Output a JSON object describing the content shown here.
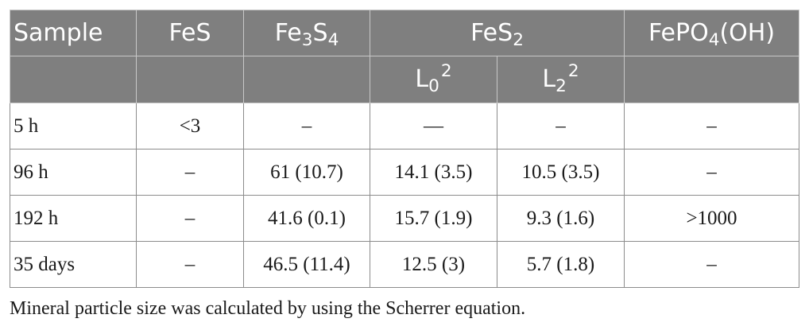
{
  "table": {
    "header": {
      "sample": "Sample",
      "fes": "FeS",
      "fe3s4": {
        "base": "Fe",
        "sub1": "3",
        "mid": "S",
        "sub2": "4"
      },
      "fes2": {
        "base": "FeS",
        "sub": "2"
      },
      "fepo4oh": {
        "base": "FePO",
        "sub": "4",
        "tail": "(OH)"
      },
      "l0": {
        "base": "L",
        "sub": "0",
        "sup": "2"
      },
      "l2": {
        "base": "L",
        "sub": "2",
        "sup": "2"
      }
    },
    "rows": [
      {
        "sample": "5 h",
        "fes": "<3",
        "fe3s4": "–",
        "l0": "—",
        "l2": "–",
        "fepo4oh": "–"
      },
      {
        "sample": "96 h",
        "fes": "–",
        "fe3s4": "61 (10.7)",
        "l0": "14.1 (3.5)",
        "l2": "10.5 (3.5)",
        "fepo4oh": "–"
      },
      {
        "sample": "192 h",
        "fes": "–",
        "fe3s4": "41.6 (0.1)",
        "l0": "15.7 (1.9)",
        "l2": "9.3 (1.6)",
        "fepo4oh": ">1000"
      },
      {
        "sample": "35 days",
        "fes": "–",
        "fe3s4": "46.5 (11.4)",
        "l0": "12.5 (3)",
        "l2": "5.7 (1.8)",
        "fepo4oh": "–"
      }
    ]
  },
  "footnote": "Mineral particle size was calculated by using the Scherrer equation.",
  "colors": {
    "header_bg": "#7f7f7f",
    "header_text": "#ffffff",
    "grid": "#8c8c8c"
  }
}
